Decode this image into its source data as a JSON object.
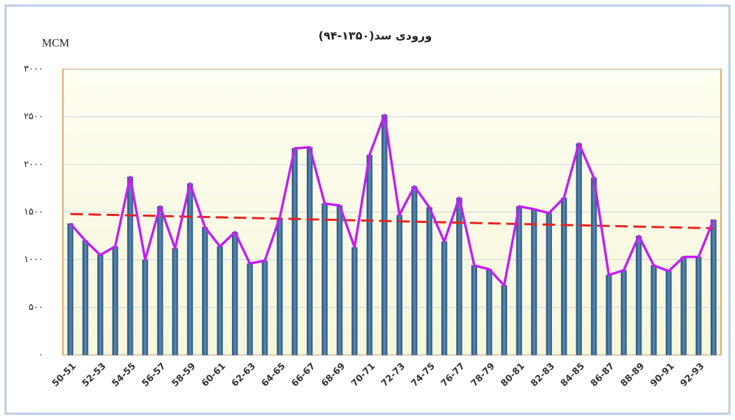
{
  "chart_data": {
    "type": "bar-line",
    "title": "ورودی سد(۱۳۵۰-۹۴)",
    "y_label": "MCM",
    "categories": [
      "50-51",
      null,
      "52-53",
      null,
      "54-55",
      null,
      "56-57",
      null,
      "58-59",
      null,
      "60-61",
      null,
      "62-63",
      null,
      "64-65",
      null,
      "66-67",
      null,
      "68-69",
      null,
      "70-71",
      null,
      "72-73",
      null,
      "74-75",
      null,
      "76-77",
      null,
      "78-79",
      null,
      "80-81",
      null,
      "82-83",
      null,
      "84-85",
      null,
      "86-87",
      null,
      "88-89",
      null,
      "90-91",
      null,
      "92-93",
      null
    ],
    "values": [
      1380,
      1200,
      1050,
      1140,
      1870,
      1000,
      1560,
      1120,
      1800,
      1340,
      1140,
      1290,
      960,
      990,
      1440,
      2170,
      2180,
      1590,
      1570,
      1130,
      2100,
      2520,
      1470,
      1770,
      1550,
      1190,
      1650,
      940,
      900,
      730,
      1560,
      1530,
      1490,
      1650,
      2220,
      1860,
      840,
      890,
      1250,
      940,
      880,
      1030,
      1030,
      1420
    ],
    "bar_color": "#3f6f96",
    "line_color": "#c21ef5",
    "trend": {
      "values": [
        1480,
        1330
      ],
      "color": "#e8231c"
    },
    "ylim": [
      0,
      3000
    ],
    "yticks": [
      {
        "value": 0,
        "label": "٠"
      },
      {
        "value": 500,
        "label": "۵۰۰"
      },
      {
        "value": 1000,
        "label": "۱۰۰۰"
      },
      {
        "value": 1500,
        "label": "۱۵۰۰"
      },
      {
        "value": 2000,
        "label": "۲۰۰۰"
      },
      {
        "value": 2500,
        "label": "۲۵۰۰"
      },
      {
        "value": 3000,
        "label": "۳۰۰۰"
      }
    ],
    "grid": true
  }
}
